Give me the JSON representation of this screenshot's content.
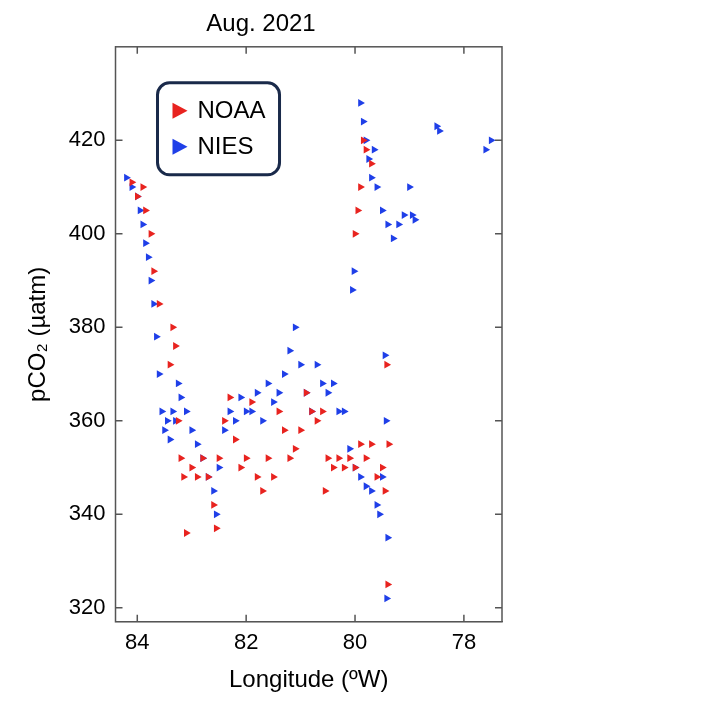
{
  "chart_data": {
    "type": "scatter",
    "title": "Aug. 2021",
    "x_label": "Longitude (ºW)",
    "y_label": "pCO₂ (µatm)",
    "xlim": [
      84.4,
      77.3
    ],
    "ylim": [
      317,
      440
    ],
    "xticks": [
      84,
      82,
      80,
      78
    ],
    "yticks": [
      320,
      340,
      360,
      380,
      400,
      420
    ],
    "grid": false,
    "legend": "upper left",
    "marker": "triangle_right",
    "series": [
      {
        "name": "NOAA",
        "color": "#e8231f",
        "x": [
          84.1,
          84.0,
          83.9,
          83.85,
          83.75,
          83.7,
          83.6,
          83.4,
          83.35,
          83.3,
          83.25,
          83.2,
          83.15,
          83.1,
          83.0,
          82.9,
          82.8,
          82.7,
          82.6,
          82.55,
          82.5,
          82.4,
          82.3,
          82.2,
          82.1,
          82.0,
          81.9,
          81.8,
          81.7,
          81.6,
          81.5,
          81.4,
          81.3,
          81.2,
          81.1,
          81.0,
          80.9,
          80.8,
          80.7,
          80.6,
          80.55,
          80.5,
          80.4,
          80.3,
          80.2,
          80.1,
          80.0,
          79.9,
          79.8,
          79.7,
          79.6,
          79.5,
          79.45,
          79.42,
          79.4,
          79.38,
          80.0,
          79.95,
          79.9,
          79.85,
          79.8,
          79.7
        ],
        "values": [
          411,
          408,
          410,
          405,
          400,
          392,
          385,
          372,
          380,
          376,
          360,
          352,
          348,
          336,
          350,
          348,
          352,
          348,
          342,
          337,
          352,
          360,
          365,
          356,
          350,
          352,
          364,
          348,
          345,
          352,
          348,
          362,
          358,
          352,
          354,
          358,
          366,
          362,
          360,
          362,
          345,
          352,
          350,
          352,
          350,
          352,
          350,
          355,
          352,
          355,
          348,
          350,
          345,
          372,
          325,
          355,
          400,
          405,
          410,
          420,
          418,
          415
        ]
      },
      {
        "name": "NIES",
        "color": "#1f3fe8",
        "x": [
          84.2,
          84.1,
          84.0,
          83.95,
          83.9,
          83.85,
          83.8,
          83.75,
          83.7,
          83.65,
          83.6,
          83.55,
          83.5,
          83.45,
          83.4,
          83.35,
          83.3,
          83.25,
          83.2,
          83.1,
          83.0,
          82.9,
          82.8,
          82.7,
          82.6,
          82.55,
          82.5,
          82.4,
          82.3,
          82.2,
          82.1,
          82.0,
          81.9,
          81.8,
          81.7,
          81.6,
          81.5,
          81.4,
          81.3,
          81.2,
          81.1,
          81.0,
          80.9,
          80.8,
          80.7,
          80.6,
          80.5,
          80.4,
          80.3,
          80.2,
          80.1,
          80.05,
          80.02,
          80.0,
          79.9,
          79.8,
          79.7,
          79.6,
          79.55,
          79.5,
          79.45,
          79.43,
          79.42,
          79.4,
          79.9,
          79.85,
          79.8,
          79.75,
          79.7,
          79.65,
          79.6,
          79.5,
          79.4,
          79.3,
          79.2,
          79.1,
          79.0,
          78.95,
          78.9,
          78.5,
          78.45,
          77.6,
          77.5
        ],
        "values": [
          412,
          410,
          408,
          405,
          402,
          398,
          395,
          390,
          385,
          378,
          370,
          362,
          358,
          360,
          356,
          362,
          360,
          368,
          365,
          362,
          358,
          355,
          352,
          348,
          345,
          340,
          350,
          358,
          362,
          360,
          365,
          362,
          362,
          366,
          360,
          368,
          364,
          366,
          370,
          375,
          380,
          372,
          366,
          362,
          372,
          368,
          366,
          368,
          362,
          362,
          354,
          388,
          392,
          350,
          348,
          346,
          345,
          342,
          340,
          348,
          374,
          360,
          322,
          335,
          428,
          424,
          420,
          416,
          412,
          418,
          410,
          405,
          402,
          399,
          402,
          404,
          410,
          404,
          403,
          423,
          422,
          418,
          420
        ]
      }
    ]
  }
}
